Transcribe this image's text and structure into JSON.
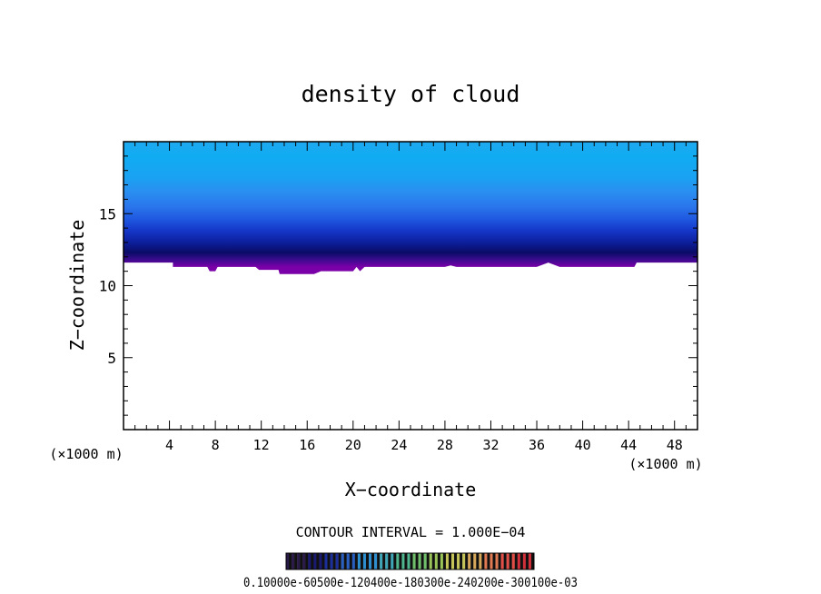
{
  "chart_data": {
    "type": "heatmap",
    "title": "density of cloud",
    "xlabel": "X−coordinate",
    "ylabel": "Z−coordinate",
    "x_unit_left": "(×1000 m)",
    "x_unit_right": "(×1000 m)",
    "xlim": [
      0,
      50
    ],
    "ylim": [
      0,
      20
    ],
    "xticks": [
      4,
      8,
      12,
      16,
      20,
      24,
      28,
      32,
      36,
      40,
      44,
      48
    ],
    "yticks": [
      5,
      10,
      15
    ],
    "contour_interval_text": "CONTOUR INTERVAL = 1.000E−04",
    "colorbar_labels_text": "0.10000e-60500e-120400e-180300e-240200e-300100e-03",
    "cloud_top_z": 20,
    "cloud_base_profile": [
      {
        "x": 0.0,
        "z": 11.6
      },
      {
        "x": 4.3,
        "z": 11.6
      },
      {
        "x": 4.3,
        "z": 11.3
      },
      {
        "x": 7.3,
        "z": 11.3
      },
      {
        "x": 7.5,
        "z": 11.0
      },
      {
        "x": 8.0,
        "z": 11.0
      },
      {
        "x": 8.2,
        "z": 11.3
      },
      {
        "x": 11.5,
        "z": 11.3
      },
      {
        "x": 11.8,
        "z": 11.1
      },
      {
        "x": 13.5,
        "z": 11.1
      },
      {
        "x": 13.6,
        "z": 10.8
      },
      {
        "x": 16.6,
        "z": 10.8
      },
      {
        "x": 17.2,
        "z": 11.0
      },
      {
        "x": 20.0,
        "z": 11.0
      },
      {
        "x": 20.3,
        "z": 11.3
      },
      {
        "x": 20.6,
        "z": 11.0
      },
      {
        "x": 21.0,
        "z": 11.3
      },
      {
        "x": 28.0,
        "z": 11.3
      },
      {
        "x": 28.5,
        "z": 11.4
      },
      {
        "x": 29.0,
        "z": 11.3
      },
      {
        "x": 36.0,
        "z": 11.3
      },
      {
        "x": 37.0,
        "z": 11.6
      },
      {
        "x": 38.0,
        "z": 11.3
      },
      {
        "x": 44.5,
        "z": 11.3
      },
      {
        "x": 44.7,
        "z": 11.6
      },
      {
        "x": 50.0,
        "z": 11.6
      }
    ],
    "vertical_color_stops": [
      {
        "z": 11.3,
        "color": "#7a00a8"
      },
      {
        "z": 11.8,
        "color": "#3b0b8e"
      },
      {
        "z": 12.3,
        "color": "#0a0b66"
      },
      {
        "z": 13.0,
        "color": "#0d1f9c"
      },
      {
        "z": 13.8,
        "color": "#1536c8"
      },
      {
        "z": 14.6,
        "color": "#1f57e0"
      },
      {
        "z": 15.5,
        "color": "#2a76ec"
      },
      {
        "z": 16.5,
        "color": "#2a8ef0"
      },
      {
        "z": 17.5,
        "color": "#1aa2f2"
      },
      {
        "z": 19.0,
        "color": "#10acf2"
      },
      {
        "z": 20.0,
        "color": "#1fa8f0"
      }
    ],
    "colorbar_palette": [
      "#2a1a4a",
      "#1a1a70",
      "#1c2e9a",
      "#2a5fc2",
      "#2e8fd0",
      "#3fa6b8",
      "#4fb58f",
      "#6fbf6a",
      "#9ac458",
      "#c4c458",
      "#d8a85a",
      "#e07a52",
      "#e04e46",
      "#d0303a"
    ]
  }
}
